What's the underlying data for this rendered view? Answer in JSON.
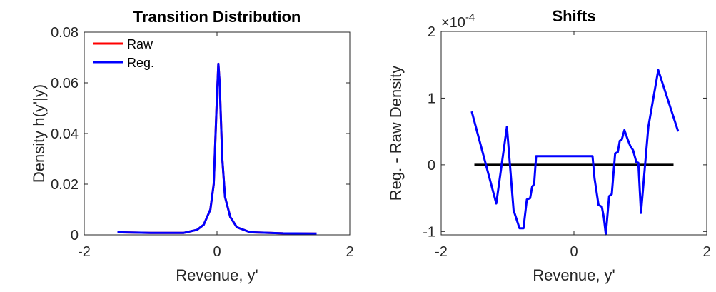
{
  "chart_data": [
    {
      "type": "line",
      "title": "Transition Distribution",
      "xlabel": "Revenue, y'",
      "ylabel": "Density h(y'|y)",
      "xlim": [
        -2,
        2
      ],
      "xticks": [
        -2,
        0,
        2
      ],
      "ylim": [
        0,
        0.08
      ],
      "yticks": [
        0,
        0.02,
        0.04,
        0.06,
        0.08
      ],
      "legend": "upper left",
      "box": true,
      "series": [
        {
          "name": "Raw",
          "color": "#ff0000",
          "x": [
            -1.5,
            -1.0,
            -0.5,
            -0.3,
            -0.2,
            -0.1,
            -0.05,
            0,
            0.02,
            0.04,
            0.08,
            0.12,
            0.2,
            0.3,
            0.5,
            1.0,
            1.5
          ],
          "values": [
            0.001,
            0.0008,
            0.0008,
            0.002,
            0.004,
            0.01,
            0.02,
            0.055,
            0.0675,
            0.06,
            0.03,
            0.015,
            0.007,
            0.003,
            0.001,
            0.0006,
            0.0005
          ]
        },
        {
          "name": "Reg.",
          "color": "#0000ff",
          "x": [
            -1.5,
            -1.0,
            -0.5,
            -0.3,
            -0.2,
            -0.1,
            -0.05,
            0,
            0.02,
            0.04,
            0.08,
            0.12,
            0.2,
            0.3,
            0.5,
            1.0,
            1.5
          ],
          "values": [
            0.001,
            0.0008,
            0.0008,
            0.002,
            0.004,
            0.01,
            0.02,
            0.055,
            0.0675,
            0.06,
            0.03,
            0.015,
            0.007,
            0.003,
            0.001,
            0.0006,
            0.0005
          ]
        }
      ]
    },
    {
      "type": "line",
      "title": "Shifts",
      "xlabel": "Revenue, y'",
      "ylabel": "Reg. - Raw Density",
      "y_exponent": {
        "base": "×10",
        "power": "-4"
      },
      "xlim": [
        -2,
        2
      ],
      "xticks": [
        -2,
        0,
        2
      ],
      "ylim": [
        -0.000105,
        0.0002
      ],
      "yticks": [
        {
          "value": -0.0001,
          "label": "-1"
        },
        {
          "value": 0,
          "label": "0"
        },
        {
          "value": 0.0001,
          "label": "1"
        },
        {
          "value": 0.0002,
          "label": "2"
        }
      ],
      "box": true,
      "series": [
        {
          "color": "#000000",
          "x": [
            -1.5,
            1.5
          ],
          "values": [
            0,
            0
          ]
        },
        {
          "color": "#0000ff",
          "x": [
            -1.54,
            -1.17,
            -1.01,
            -0.91,
            -0.82,
            -0.76,
            -0.71,
            -0.66,
            -0.63,
            -0.6,
            -0.57,
            0.28,
            0.31,
            0.37,
            0.42,
            0.45,
            0.48,
            0.53,
            0.57,
            0.62,
            0.66,
            0.69,
            0.72,
            0.76,
            0.81,
            0.85,
            0.89,
            0.94,
            0.97,
            1.01,
            1.12,
            1.27,
            1.57
          ],
          "values": [
            8e-05,
            -5.8e-05,
            5.7e-05,
            -6.8e-05,
            -9.5e-05,
            -9.5e-05,
            -5.2e-05,
            -5e-05,
            -3.3e-05,
            -2.9e-05,
            1.3e-05,
            1.3e-05,
            -2e-05,
            -6e-05,
            -6.3e-05,
            -7.9e-05,
            -0.000104,
            -4.7e-05,
            -4.4e-05,
            1.7e-05,
            1.9e-05,
            3.6e-05,
            3.8e-05,
            5.2e-05,
            3.8e-05,
            2.8e-05,
            2.2e-05,
            4e-06,
            3e-06,
            -7.2e-05,
            5.7e-05,
            0.000142,
            5e-05
          ]
        }
      ]
    }
  ]
}
